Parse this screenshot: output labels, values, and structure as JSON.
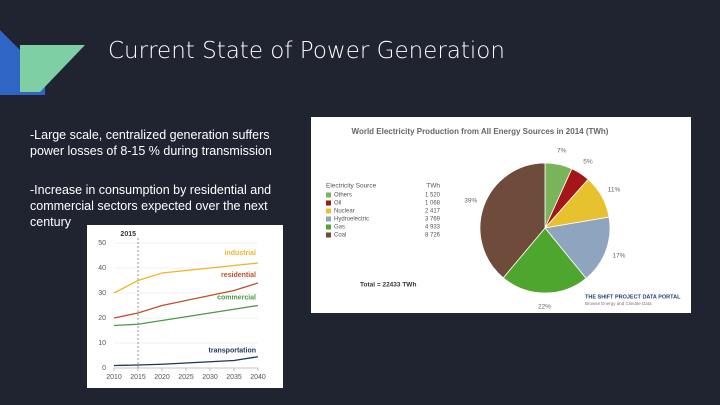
{
  "slide": {
    "title": "Current State of Power Generation",
    "bullets": [
      "-Large scale, centralized generation suffers power losses of 8-15 % during transmission",
      "-Increase in consumption by residential and commercial sectors expected over the next century"
    ]
  },
  "chart_data": [
    {
      "type": "pie",
      "title": "World Electricity Production from All Energy Sources in 2014 (TWh)",
      "legend_header": [
        "Electricity Source",
        "TWh"
      ],
      "categories": [
        "Others",
        "Oil",
        "Nuclear",
        "Hydroelectric",
        "Gas",
        "Coal"
      ],
      "values": [
        1520,
        1068,
        2417,
        3769,
        4933,
        8726
      ],
      "value_labels": [
        "1 520",
        "1 068",
        "2 417",
        "3 769",
        "4 933",
        "8 726"
      ],
      "shares": [
        7,
        5,
        11,
        17,
        22,
        39
      ],
      "share_labels": [
        "7%",
        "5%",
        "11%",
        "17%",
        "22%",
        "39%"
      ],
      "colors": [
        "#79b45a",
        "#a3161a",
        "#e8c22e",
        "#8ea4bf",
        "#4fa62f",
        "#6e4b3a"
      ],
      "total_label": "Total = 22433 TWh",
      "source": [
        "THE SHIFT PROJECT DATA PORTAL",
        "Browse Energy and Climate Data"
      ]
    },
    {
      "type": "line",
      "annotation_x": 2015,
      "x": [
        2010,
        2015,
        2020,
        2025,
        2030,
        2035,
        2040
      ],
      "xlim": [
        2010,
        2040
      ],
      "xticks": [
        2010,
        2015,
        2020,
        2025,
        2030,
        2035,
        2040
      ],
      "ylim": [
        0,
        50
      ],
      "yticks": [
        0,
        10,
        20,
        30,
        40,
        50
      ],
      "grid": true,
      "series": [
        {
          "name": "industrial",
          "color": "#f0b429",
          "values": [
            30,
            35,
            38,
            39,
            40,
            41,
            42
          ]
        },
        {
          "name": "residential",
          "color": "#c0502b",
          "values": [
            20,
            22,
            25,
            27,
            29,
            31,
            34
          ]
        },
        {
          "name": "commercial",
          "color": "#4c9a45",
          "values": [
            17,
            17.5,
            19,
            20.5,
            22,
            23.5,
            25
          ]
        },
        {
          "name": "transportation",
          "color": "#1d3557",
          "values": [
            1,
            1.2,
            1.5,
            2,
            2.5,
            3,
            4.5
          ]
        }
      ]
    }
  ]
}
